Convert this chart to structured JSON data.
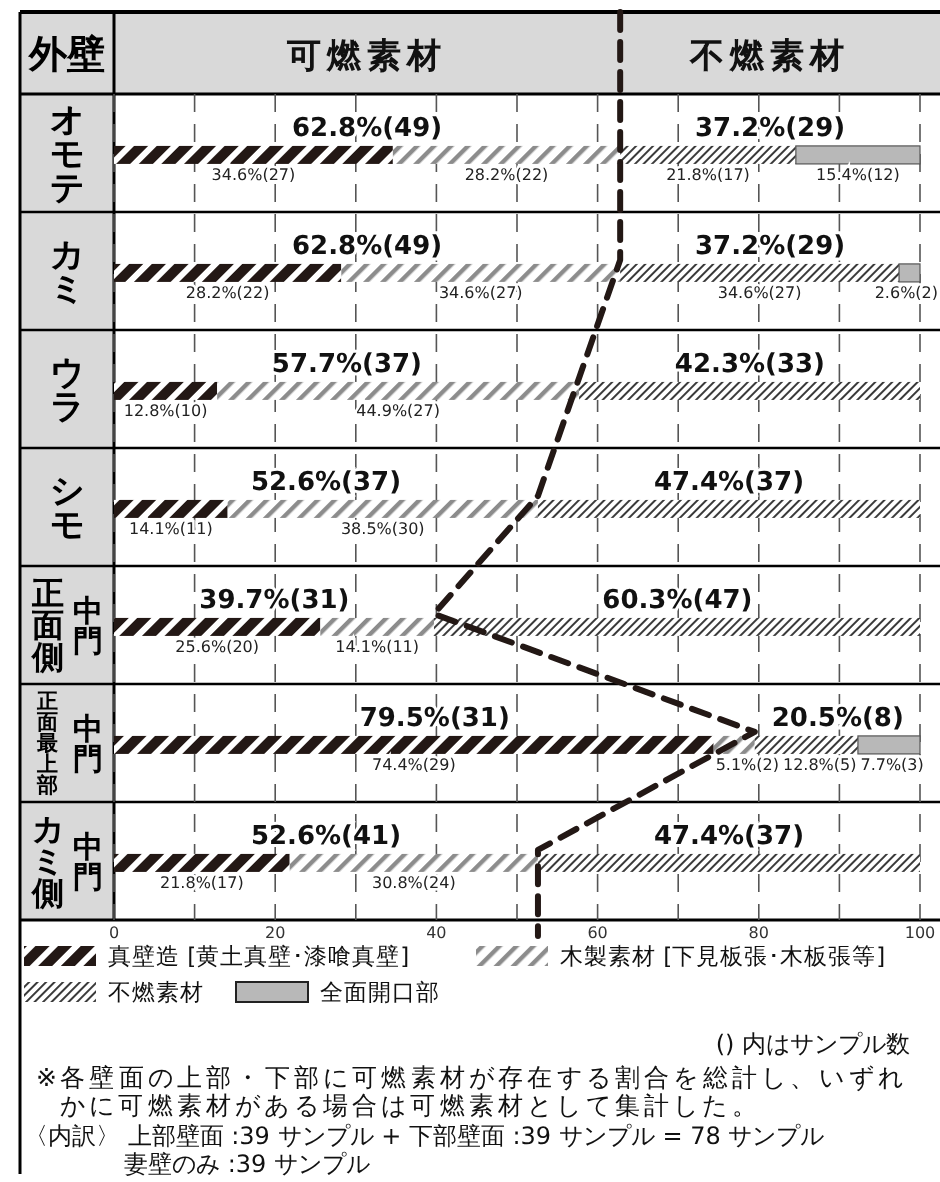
{
  "chart_data": {
    "type": "bar",
    "orientation": "horizontal",
    "stacked": true,
    "ylabel": "外壁",
    "categories": [
      "オモテ",
      "カミ",
      "ウラ",
      "シモ",
      "正面側中門",
      "正面最上部中門",
      "カミ側中門"
    ],
    "series": [
      {
        "name": "真壁造 [黄土真壁･漆喰真壁]",
        "color": "#231815",
        "values": [
          34.6,
          28.2,
          12.8,
          14.1,
          25.6,
          74.4,
          21.8
        ],
        "value_labels": [
          "34.6%(27)",
          "28.2%(22)",
          "12.8%(10)",
          "14.1%(11)",
          "25.6%(20)",
          "74.4%(29)",
          "21.8%(17)"
        ]
      },
      {
        "name": "木製素材 [下見板張･木板張等]",
        "color": "#8c8c8c",
        "values": [
          28.2,
          34.6,
          44.9,
          38.5,
          14.1,
          5.1,
          30.8
        ],
        "value_labels": [
          "28.2%(22)",
          "34.6%(27)",
          "44.9%(27)",
          "38.5%(30)",
          "14.1%(11)",
          "5.1%(2)",
          "30.8%(24)"
        ]
      },
      {
        "name": "不燃素材",
        "color": "#3a3a3a",
        "values": [
          21.8,
          34.6,
          42.3,
          47.4,
          60.3,
          12.8,
          47.4
        ],
        "value_labels": [
          "21.8%(17)",
          "34.6%(27)",
          null,
          null,
          null,
          "12.8%(5)",
          null
        ]
      },
      {
        "name": "全面開口部",
        "color": "#b8b8b8",
        "values": [
          15.4,
          2.6,
          0,
          0,
          0,
          7.7,
          0
        ],
        "value_labels": [
          "15.4%(12)",
          "2.6%(2)",
          null,
          null,
          null,
          "7.7%(3)",
          null
        ]
      },
      {
        "type": "line",
        "color": "#231815",
        "line_style": "dashed",
        "values": [
          62.8,
          62.8,
          57.7,
          52.6,
          39.7,
          79.5,
          52.6
        ]
      }
    ],
    "xlim": [
      0,
      100
    ],
    "xticks": [
      0,
      {
        "value": 10,
        "label": null
      },
      20,
      {
        "value": 30,
        "label": null
      },
      40,
      {
        "value": 50,
        "label": null
      },
      60,
      {
        "value": 70,
        "label": null
      },
      80,
      {
        "value": 90,
        "label": null
      },
      100
    ],
    "grid": "x",
    "legend": "bottom",
    "annotations": [
      "可燃素材",
      "不燃素材",
      {
        "text": "62.8%(49)",
        "x": 31.4,
        "y": "オモテ"
      },
      {
        "text": "37.2%(29)",
        "x": 81.4,
        "y": "オモテ"
      },
      {
        "text": "62.8%(49)",
        "x": 31.4,
        "y": "カミ"
      },
      {
        "text": "37.2%(29)",
        "x": 81.4,
        "y": "カミ"
      },
      {
        "text": "57.7%(37)",
        "x": 28.9,
        "y": "ウラ"
      },
      {
        "text": "42.3%(33)",
        "x": 78.9,
        "y": "ウラ"
      },
      {
        "text": "52.6%(37)",
        "x": 26.3,
        "y": "シモ"
      },
      {
        "text": "47.4%(37)",
        "x": 76.3,
        "y": "シモ"
      },
      {
        "text": "39.7%(31)",
        "x": 19.9,
        "y": "正面側中門"
      },
      {
        "text": "60.3%(47)",
        "x": 69.9,
        "y": "正面側中門"
      },
      {
        "text": "79.5%(31)",
        "x": 39.8,
        "y": "正面最上部中門"
      },
      {
        "text": "20.5%(8)",
        "x": 89.8,
        "y": "正面最上部中門"
      },
      {
        "text": "52.6%(41)",
        "x": 26.3,
        "y": "カミ側中門"
      },
      {
        "text": "47.4%(37)",
        "x": 76.3,
        "y": "カミ側中門"
      },
      "() 内はサンプル数",
      "※各壁面の上部・下部に可燃素材が存在する割合を総計し、いずれかに可燃素材がある場合は可燃素材として集計した。",
      "〈内訳〉 上部壁面 :39 サンプル + 下部壁面 :39 サンプル = 78 サンプル",
      "妻壁のみ :39 サンプル"
    ]
  }
}
